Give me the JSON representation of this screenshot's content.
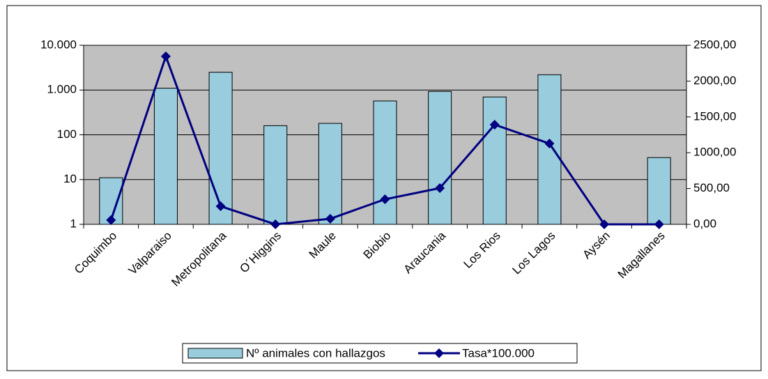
{
  "chart_data": {
    "type": "bar",
    "categories": [
      "Coquimbo",
      "Valparaiso",
      "Metropolitana",
      "O´Higgins",
      "Maule",
      "Biobio",
      "Araucania",
      "Los Rios",
      "Los Lagos",
      "Aysén",
      "Magallanes"
    ],
    "series": [
      {
        "name": "Nº animales con hallazgos",
        "type": "bar",
        "color": "#99ccdd",
        "values": [
          11,
          1100,
          2500,
          160,
          180,
          570,
          930,
          700,
          2200,
          null,
          31
        ]
      },
      {
        "name": "Tasa*100.000",
        "type": "line",
        "axis": "y2",
        "color": "#000080",
        "values": [
          60,
          2345,
          253,
          0,
          78,
          350,
          506,
          1391,
          1128,
          0,
          0
        ]
      }
    ],
    "ylim": [
      1,
      10000
    ],
    "log_scale": true,
    "yticks": [
      1,
      10,
      100,
      {
        "value": 1000,
        "label": "1.000"
      },
      {
        "value": 10000,
        "label": "10.000"
      }
    ],
    "y2lim": [
      0,
      2500
    ],
    "y2ticks": [
      {
        "value": 0,
        "label": "0,00"
      },
      {
        "value": 500,
        "label": "500,00"
      },
      {
        "value": 1000,
        "label": "1000,00"
      },
      {
        "value": 1500,
        "label": "1500,00"
      },
      {
        "value": 2000,
        "label": "2000,00"
      },
      {
        "value": 2500,
        "label": "2500,00"
      }
    ],
    "grid": true,
    "legend": "bottom"
  }
}
